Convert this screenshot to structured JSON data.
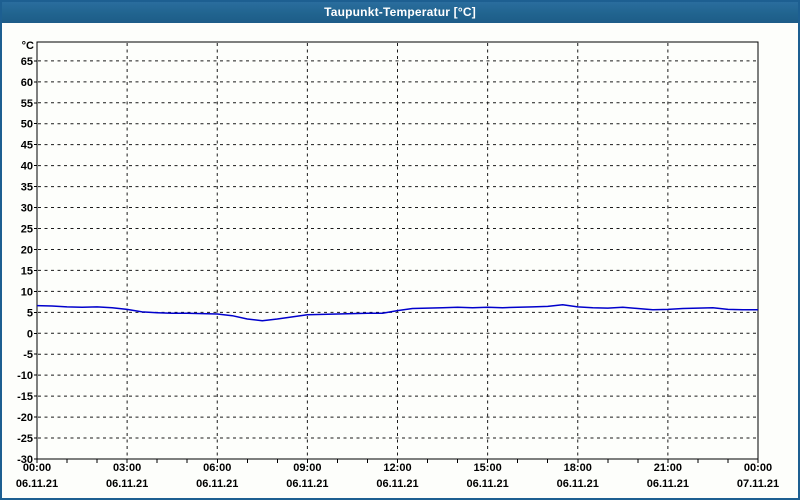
{
  "window": {
    "title": "Taupunkt-Temperatur [°C]"
  },
  "colors": {
    "titlebar_bg": "#21648f",
    "window_border": "#1d5f91",
    "window_bg": "#fdfefb",
    "plot_bg": "#fdfefb",
    "axis": "#000000",
    "grid": "#1a1a1a",
    "series_line": "#0000cc",
    "tick_text": "#000000",
    "title_text": "#ffffff"
  },
  "chart_data": {
    "type": "line",
    "title": "Taupunkt-Temperatur [°C]",
    "ylabel": "°C",
    "xlabel": "",
    "ylim": [
      -30,
      69.5
    ],
    "xlim": [
      0,
      24
    ],
    "grid": "dashed",
    "legend": "none",
    "yticks": [
      65,
      60,
      55,
      50,
      45,
      40,
      35,
      30,
      25,
      20,
      15,
      10,
      5,
      0,
      -5,
      -10,
      -15,
      -20,
      -25,
      -30
    ],
    "xticks": [
      {
        "time": "00:00",
        "date": "06.11.21"
      },
      {
        "time": "03:00",
        "date": "06.11.21"
      },
      {
        "time": "06:00",
        "date": "06.11.21"
      },
      {
        "time": "09:00",
        "date": "06.11.21"
      },
      {
        "time": "12:00",
        "date": "06.11.21"
      },
      {
        "time": "15:00",
        "date": "06.11.21"
      },
      {
        "time": "18:00",
        "date": "06.11.21"
      },
      {
        "time": "21:00",
        "date": "06.11.21"
      },
      {
        "time": "00:00",
        "date": "07.11.21"
      }
    ],
    "xtick_interval_hours": 3,
    "minor_xtick_interval_hours": 1,
    "series": [
      {
        "name": "Taupunkt-Temperatur",
        "color": "#0000cc",
        "x": [
          0,
          0.5,
          1,
          1.5,
          2,
          2.5,
          3,
          3.5,
          4,
          4.5,
          5,
          5.5,
          6,
          6.5,
          7,
          7.5,
          8,
          8.5,
          9,
          9.5,
          10,
          10.5,
          11,
          11.5,
          12,
          12.5,
          13,
          13.5,
          14,
          14.5,
          15,
          15.5,
          16,
          16.5,
          17,
          17.5,
          18,
          18.5,
          19,
          19.5,
          20,
          20.5,
          21,
          21.5,
          22,
          22.5,
          23,
          23.5,
          24
        ],
        "values": [
          6.6,
          6.5,
          6.3,
          6.2,
          6.3,
          6.1,
          5.7,
          5.1,
          4.9,
          4.8,
          4.8,
          4.7,
          4.6,
          4.2,
          3.4,
          3.0,
          3.4,
          3.9,
          4.4,
          4.5,
          4.6,
          4.7,
          4.8,
          4.8,
          5.4,
          5.9,
          6.0,
          6.1,
          6.2,
          6.1,
          6.2,
          6.1,
          6.2,
          6.3,
          6.4,
          6.8,
          6.3,
          6.1,
          6.0,
          6.2,
          5.9,
          5.6,
          5.7,
          5.9,
          6.0,
          6.1,
          5.7,
          5.6,
          5.6
        ]
      }
    ]
  }
}
